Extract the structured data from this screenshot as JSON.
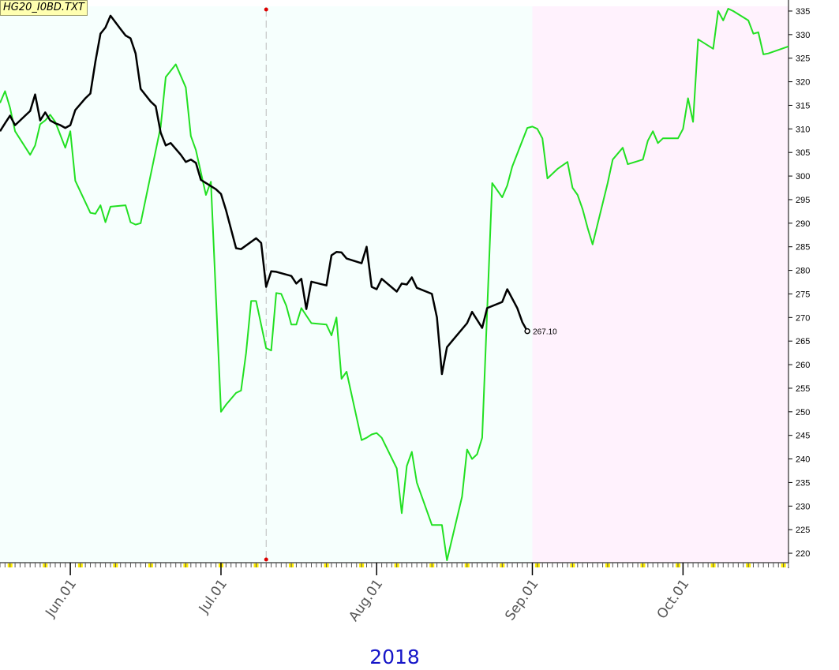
{
  "file_label": "HG20_I0BD.TXT",
  "colors": {
    "background_past": "#f6fffd",
    "background_future": "#fff2fd",
    "primary_series": "#000000",
    "secondary_series": "#22e022",
    "tick_highlight": "#ffee00",
    "marker": "#dd0000",
    "year_label": "#1515c8"
  },
  "chart_data": {
    "type": "line",
    "title": "",
    "year_label": "2018",
    "x_axis": {
      "type": "date",
      "range": [
        "2018-05-18",
        "2018-10-22"
      ],
      "tick_labels": [
        {
          "date": "2018-06-01",
          "label": "Jun.01"
        },
        {
          "date": "2018-07-01",
          "label": "Jul.01"
        },
        {
          "date": "2018-08-01",
          "label": "Aug.01"
        },
        {
          "date": "2018-09-01",
          "label": "Sep.01"
        },
        {
          "date": "2018-10-01",
          "label": "Oct.01"
        }
      ],
      "projection_start": "2018-09-01",
      "marker_date": "2018-07-10"
    },
    "y_axis": {
      "position": "right",
      "ylim": [
        218,
        336
      ],
      "ticks": [
        220,
        225,
        230,
        235,
        240,
        245,
        250,
        255,
        260,
        265,
        270,
        275,
        280,
        285,
        290,
        295,
        300,
        305,
        310,
        315,
        320,
        325,
        330,
        335
      ]
    },
    "last_value": {
      "date": "2018-08-31",
      "value": 267.1,
      "label": "267.10"
    },
    "series": [
      {
        "color": "#000000",
        "points": [
          [
            "2018-05-18",
            309.5
          ],
          [
            "2018-05-19",
            311.2
          ],
          [
            "2018-05-20",
            312.8
          ],
          [
            "2018-05-21",
            310.8
          ],
          [
            "2018-05-22",
            311.8
          ],
          [
            "2018-05-23",
            312.8
          ],
          [
            "2018-05-24",
            313.8
          ],
          [
            "2018-05-25",
            317.3
          ],
          [
            "2018-05-26",
            311.8
          ],
          [
            "2018-05-27",
            313.5
          ],
          [
            "2018-05-28",
            311.8
          ],
          [
            "2018-05-29",
            311.2
          ],
          [
            "2018-05-30",
            310.8
          ],
          [
            "2018-05-31",
            310.2
          ],
          [
            "2018-06-01",
            310.8
          ],
          [
            "2018-06-02",
            314.0
          ],
          [
            "2018-06-04",
            316.5
          ],
          [
            "2018-06-05",
            317.5
          ],
          [
            "2018-06-06",
            324.3
          ],
          [
            "2018-06-07",
            330.2
          ],
          [
            "2018-06-08",
            331.5
          ],
          [
            "2018-06-09",
            334.0
          ],
          [
            "2018-06-11",
            331.2
          ],
          [
            "2018-06-12",
            329.8
          ],
          [
            "2018-06-13",
            329.2
          ],
          [
            "2018-06-14",
            326.0
          ],
          [
            "2018-06-15",
            318.5
          ],
          [
            "2018-06-17",
            315.8
          ],
          [
            "2018-06-18",
            314.8
          ],
          [
            "2018-06-19",
            309.2
          ],
          [
            "2018-06-20",
            306.5
          ],
          [
            "2018-06-21",
            307.0
          ],
          [
            "2018-06-23",
            304.5
          ],
          [
            "2018-06-24",
            303.0
          ],
          [
            "2018-06-25",
            303.5
          ],
          [
            "2018-06-26",
            302.8
          ],
          [
            "2018-06-27",
            299.2
          ],
          [
            "2018-06-30",
            297.2
          ],
          [
            "2018-07-01",
            296.2
          ],
          [
            "2018-07-02",
            292.8
          ],
          [
            "2018-07-04",
            284.7
          ],
          [
            "2018-07-05",
            284.5
          ],
          [
            "2018-07-08",
            286.8
          ],
          [
            "2018-07-09",
            285.8
          ],
          [
            "2018-07-10",
            276.5
          ],
          [
            "2018-07-11",
            279.8
          ],
          [
            "2018-07-12",
            279.7
          ],
          [
            "2018-07-15",
            278.8
          ],
          [
            "2018-07-16",
            277.2
          ],
          [
            "2018-07-17",
            278.2
          ],
          [
            "2018-07-18",
            271.8
          ],
          [
            "2018-07-19",
            277.6
          ],
          [
            "2018-07-22",
            276.8
          ],
          [
            "2018-07-23",
            283.2
          ],
          [
            "2018-07-24",
            283.9
          ],
          [
            "2018-07-25",
            283.8
          ],
          [
            "2018-07-26",
            282.5
          ],
          [
            "2018-07-29",
            281.5
          ],
          [
            "2018-07-30",
            285.0
          ],
          [
            "2018-07-31",
            276.5
          ],
          [
            "2018-08-01",
            276.0
          ],
          [
            "2018-08-02",
            278.2
          ],
          [
            "2018-08-05",
            275.5
          ],
          [
            "2018-08-06",
            277.2
          ],
          [
            "2018-08-07",
            277.0
          ],
          [
            "2018-08-08",
            278.5
          ],
          [
            "2018-08-09",
            276.3
          ],
          [
            "2018-08-12",
            275.0
          ],
          [
            "2018-08-13",
            270.0
          ],
          [
            "2018-08-14",
            258.0
          ],
          [
            "2018-08-15",
            263.7
          ],
          [
            "2018-08-16",
            265.0
          ],
          [
            "2018-08-19",
            268.8
          ],
          [
            "2018-08-20",
            271.2
          ],
          [
            "2018-08-22",
            267.8
          ],
          [
            "2018-08-23",
            272.0
          ],
          [
            "2018-08-26",
            273.3
          ],
          [
            "2018-08-27",
            276.0
          ],
          [
            "2018-08-29",
            272.0
          ],
          [
            "2018-08-30",
            269.0
          ],
          [
            "2018-08-31",
            267.1
          ]
        ]
      },
      {
        "color": "#22e022",
        "points": [
          [
            "2018-05-18",
            315.5
          ],
          [
            "2018-05-19",
            318.0
          ],
          [
            "2018-05-20",
            314.5
          ],
          [
            "2018-05-21",
            309.5
          ],
          [
            "2018-05-24",
            304.5
          ],
          [
            "2018-05-25",
            306.5
          ],
          [
            "2018-05-26",
            311.0
          ],
          [
            "2018-05-27",
            311.8
          ],
          [
            "2018-05-28",
            313.0
          ],
          [
            "2018-05-29",
            311.5
          ],
          [
            "2018-05-31",
            306.0
          ],
          [
            "2018-06-01",
            309.5
          ],
          [
            "2018-06-02",
            299.0
          ],
          [
            "2018-06-05",
            292.2
          ],
          [
            "2018-06-06",
            292.0
          ],
          [
            "2018-06-07",
            293.8
          ],
          [
            "2018-06-08",
            290.2
          ],
          [
            "2018-06-09",
            293.5
          ],
          [
            "2018-06-12",
            293.8
          ],
          [
            "2018-06-13",
            290.2
          ],
          [
            "2018-06-14",
            289.7
          ],
          [
            "2018-06-15",
            290.0
          ],
          [
            "2018-06-19",
            310.5
          ],
          [
            "2018-06-20",
            321.0
          ],
          [
            "2018-06-22",
            323.7
          ],
          [
            "2018-06-24",
            318.8
          ],
          [
            "2018-06-25",
            308.5
          ],
          [
            "2018-06-26",
            305.5
          ],
          [
            "2018-06-28",
            296.0
          ],
          [
            "2018-06-29",
            298.8
          ],
          [
            "2018-07-01",
            250.0
          ],
          [
            "2018-07-02",
            251.5
          ],
          [
            "2018-07-04",
            254.0
          ],
          [
            "2018-07-05",
            254.5
          ],
          [
            "2018-07-06",
            262.5
          ],
          [
            "2018-07-07",
            273.5
          ],
          [
            "2018-07-08",
            273.5
          ],
          [
            "2018-07-10",
            263.5
          ],
          [
            "2018-07-11",
            263.0
          ],
          [
            "2018-07-12",
            275.2
          ],
          [
            "2018-07-13",
            275.0
          ],
          [
            "2018-07-14",
            272.5
          ],
          [
            "2018-07-15",
            268.5
          ],
          [
            "2018-07-16",
            268.5
          ],
          [
            "2018-07-17",
            272.0
          ],
          [
            "2018-07-19",
            268.8
          ],
          [
            "2018-07-22",
            268.5
          ],
          [
            "2018-07-23",
            266.2
          ],
          [
            "2018-07-24",
            270.0
          ],
          [
            "2018-07-25",
            257.0
          ],
          [
            "2018-07-26",
            258.5
          ],
          [
            "2018-07-29",
            244.0
          ],
          [
            "2018-07-30",
            244.5
          ],
          [
            "2018-07-31",
            245.2
          ],
          [
            "2018-08-01",
            245.5
          ],
          [
            "2018-08-02",
            244.5
          ],
          [
            "2018-08-05",
            238.0
          ],
          [
            "2018-08-06",
            228.5
          ],
          [
            "2018-08-07",
            238.5
          ],
          [
            "2018-08-08",
            241.5
          ],
          [
            "2018-08-09",
            235.0
          ],
          [
            "2018-08-12",
            226.0
          ],
          [
            "2018-08-14",
            226.0
          ],
          [
            "2018-08-15",
            218.5
          ],
          [
            "2018-08-18",
            232.0
          ],
          [
            "2018-08-19",
            242.0
          ],
          [
            "2018-08-20",
            240.0
          ],
          [
            "2018-08-21",
            241.0
          ],
          [
            "2018-08-22",
            244.5
          ],
          [
            "2018-08-24",
            298.5
          ],
          [
            "2018-08-26",
            295.5
          ],
          [
            "2018-08-27",
            298.0
          ],
          [
            "2018-08-28",
            302.0
          ],
          [
            "2018-08-31",
            310.2
          ],
          [
            "2018-09-01",
            310.5
          ],
          [
            "2018-09-02",
            310.0
          ],
          [
            "2018-09-03",
            308.0
          ],
          [
            "2018-09-04",
            299.5
          ],
          [
            "2018-09-06",
            301.5
          ],
          [
            "2018-09-08",
            303.0
          ],
          [
            "2018-09-09",
            297.5
          ],
          [
            "2018-09-10",
            296.0
          ],
          [
            "2018-09-11",
            293.0
          ],
          [
            "2018-09-12",
            289.0
          ],
          [
            "2018-09-13",
            285.5
          ],
          [
            "2018-09-16",
            298.5
          ],
          [
            "2018-09-17",
            303.5
          ],
          [
            "2018-09-19",
            306.0
          ],
          [
            "2018-09-20",
            302.5
          ],
          [
            "2018-09-23",
            303.5
          ],
          [
            "2018-09-24",
            307.5
          ],
          [
            "2018-09-25",
            309.5
          ],
          [
            "2018-09-26",
            307.0
          ],
          [
            "2018-09-27",
            308.0
          ],
          [
            "2018-09-30",
            308.0
          ],
          [
            "2018-10-01",
            310.0
          ],
          [
            "2018-10-02",
            316.5
          ],
          [
            "2018-10-03",
            311.5
          ],
          [
            "2018-10-04",
            329.0
          ],
          [
            "2018-10-07",
            327.0
          ],
          [
            "2018-10-08",
            335.0
          ],
          [
            "2018-10-09",
            333.0
          ],
          [
            "2018-10-10",
            335.5
          ],
          [
            "2018-10-11",
            335.0
          ],
          [
            "2018-10-14",
            333.0
          ],
          [
            "2018-10-15",
            330.2
          ],
          [
            "2018-10-16",
            330.5
          ],
          [
            "2018-10-17",
            325.8
          ],
          [
            "2018-10-18",
            326.0
          ],
          [
            "2018-10-22",
            327.5
          ]
        ]
      }
    ]
  }
}
